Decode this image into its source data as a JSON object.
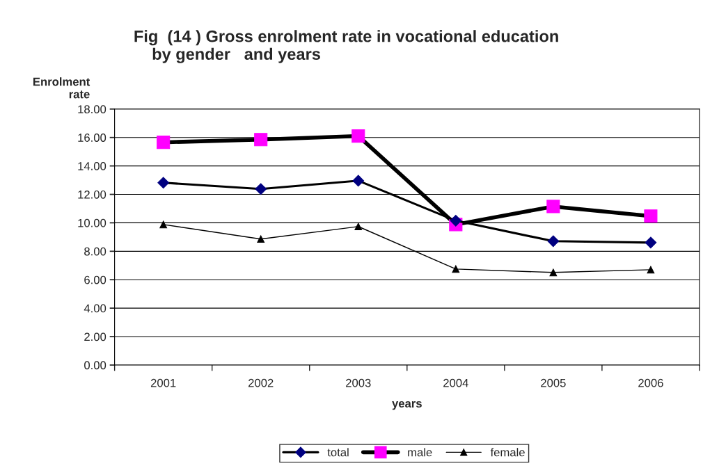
{
  "chart_data": {
    "type": "line",
    "title": "Fig  (14 ) Gross enrolment rate in vocational education\n    by gender   and years",
    "xlabel": "years",
    "ylabel": "Enrolment\nrate",
    "categories": [
      "2001",
      "2002",
      "2003",
      "2004",
      "2005",
      "2006"
    ],
    "series": [
      {
        "name": "total",
        "color": "#000080",
        "marker": "diamond",
        "values": [
          12.82,
          12.38,
          12.96,
          10.15,
          8.71,
          8.61
        ]
      },
      {
        "name": "male",
        "color": "#ff00ff",
        "marker": "square",
        "values": [
          15.66,
          15.85,
          16.1,
          9.88,
          11.15,
          10.47
        ]
      },
      {
        "name": "female",
        "color": "#000000",
        "marker": "triangle",
        "values": [
          9.88,
          8.86,
          9.74,
          6.75,
          6.51,
          6.7
        ]
      }
    ],
    "ylim": [
      0,
      18
    ],
    "yticks": [
      {
        "value": 0,
        "label": "0.00"
      },
      {
        "value": 2,
        "label": "2.00"
      },
      {
        "value": 4,
        "label": "4.00"
      },
      {
        "value": 6,
        "label": "6.00"
      },
      {
        "value": 8,
        "label": "8.00"
      },
      {
        "value": 10,
        "label": "10.00"
      },
      {
        "value": 12,
        "label": "12.00"
      },
      {
        "value": 14,
        "label": "14.00"
      },
      {
        "value": 16,
        "label": "16.00"
      },
      {
        "value": 18,
        "label": "18.00"
      }
    ],
    "grid": "y",
    "legend": "bottom"
  }
}
